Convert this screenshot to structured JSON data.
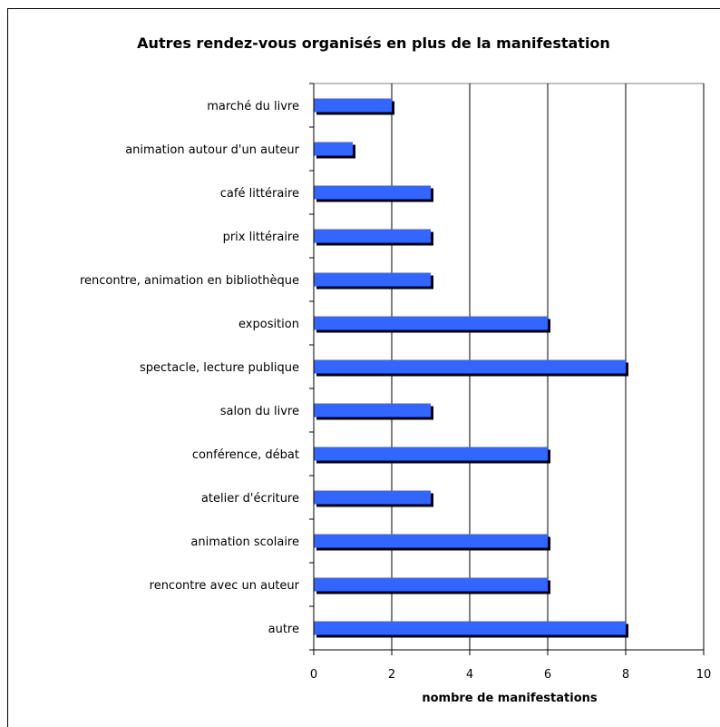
{
  "chart_data": {
    "type": "bar",
    "orientation": "horizontal",
    "title": "Autres rendez-vous organisés en plus de la manifestation",
    "xlabel": "nombre de manifestations",
    "ylabel": "",
    "xlim": [
      0,
      10
    ],
    "xticks": [
      "0",
      "2",
      "4",
      "6",
      "8",
      "10"
    ],
    "grid": "vertical",
    "legend": "none",
    "categories": [
      "marché du livre",
      "animation autour d'un auteur",
      "café littéraire",
      "prix littéraire",
      "rencontre, animation en bibliothèque",
      "exposition",
      "spectacle, lecture publique",
      "salon du livre",
      "conférence, débat",
      "atelier d'écriture",
      "animation scolaire",
      "rencontre avec un auteur",
      "autre"
    ],
    "values": [
      2,
      1,
      3,
      3,
      3,
      6,
      8,
      3,
      6,
      3,
      6,
      6,
      8
    ],
    "colors": {
      "bar": "#3366ff",
      "shadow": "#000000",
      "grid": "#000000"
    }
  }
}
